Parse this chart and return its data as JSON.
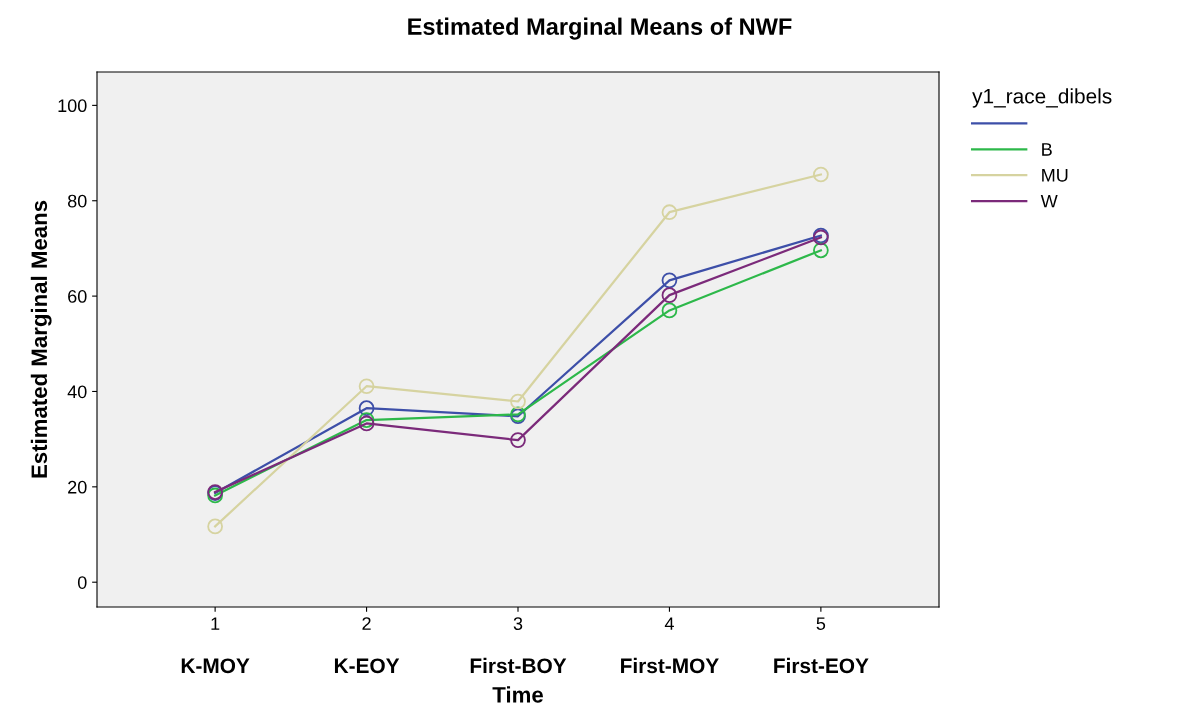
{
  "chart_data": {
    "type": "line",
    "title": "Estimated Marginal Means of NWF",
    "xlabel": "Time",
    "ylabel": "Estimated Marginal Means",
    "legend_title": "y1_race_dibels",
    "categories": [
      "1",
      "2",
      "3",
      "4",
      "5"
    ],
    "annotations": [
      "K-MOY",
      "K-EOY",
      "First-BOY",
      "First-MOY",
      "First-EOY"
    ],
    "series": [
      {
        "color": "#3d4fa8",
        "values": [
          18.7,
          36.5,
          34.8,
          63.3,
          72.7
        ]
      },
      {
        "name": "B",
        "color": "#2db84a",
        "values": [
          18.2,
          34.0,
          35.2,
          57.0,
          69.6
        ]
      },
      {
        "name": "MU",
        "color": "#d6d3a0",
        "values": [
          11.7,
          41.1,
          37.9,
          77.6,
          85.5
        ]
      },
      {
        "name": "W",
        "color": "#7b2a7a",
        "values": [
          18.9,
          33.3,
          29.8,
          60.2,
          72.3
        ]
      }
    ],
    "ylim": [
      -5.2,
      107
    ],
    "yticks": [
      0,
      20,
      40,
      60,
      80,
      100
    ],
    "grid": false,
    "legend": "right",
    "marker": "circle",
    "line_style": "solid"
  }
}
